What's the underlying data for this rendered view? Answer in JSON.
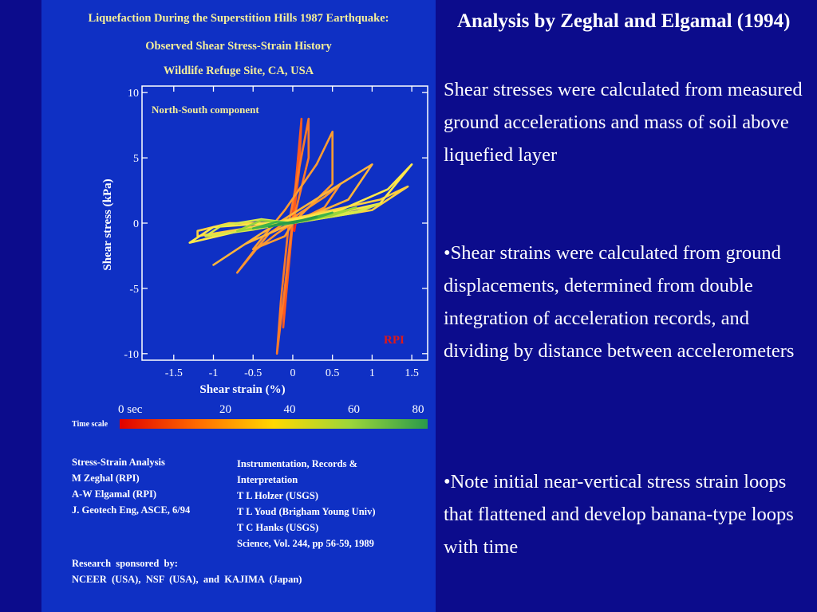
{
  "figure": {
    "title_lines": [
      "Liquefaction During the Superstition Hills 1987 Earthquake:",
      "Observed Shear Stress-Strain History",
      "Wildlife Refuge Site, CA, USA"
    ],
    "component_label": "North-South component",
    "rpi_badge": "RPI",
    "time_scale": {
      "label": "Time scale",
      "ticks": [
        "0 sec",
        "20",
        "40",
        "60",
        "80"
      ],
      "colors": [
        "#e00000",
        "#ff6a00",
        "#ffd800",
        "#9cd63a",
        "#2a9a4a"
      ]
    },
    "credits_left": "Stress-Strain Analysis\nM Zeghal (RPI)\nA-W Elgamal (RPI)\nJ. Geotech Eng, ASCE, 6/94",
    "credits_right": "Instrumentation, Records &\nInterpretation\nT L Holzer (USGS)\nT L Youd (Brigham Young Univ)\nT C Hanks (USGS)\nScience, Vol. 244, pp 56-59, 1989",
    "sponsor": "Research  sponsored  by:\nNCEER  (USA),  NSF  (USA),  and  KAJIMA  (Japan)"
  },
  "chart_data": {
    "type": "line",
    "title": "Observed Shear Stress-Strain History",
    "xlabel": "Shear strain (%)",
    "ylabel": "Shear stress (kPa)",
    "xlim": [
      -1.9,
      1.7
    ],
    "ylim": [
      -10.5,
      10.5
    ],
    "x_ticks": [
      -1.5,
      -1,
      -0.5,
      0,
      0.5,
      1,
      1.5
    ],
    "x_tick_labels": [
      "-1.5",
      "-1",
      "-0.5",
      "0",
      "0.5",
      "1",
      "1.5"
    ],
    "y_ticks": [
      10,
      5,
      0,
      -5,
      -10
    ],
    "y_tick_labels": [
      "10",
      "5",
      "0",
      "-5",
      "-10"
    ],
    "grid": false,
    "series": [
      {
        "color": "#ff2a14",
        "x": [
          0.0,
          0.02,
          0.05,
          0.02,
          -0.02,
          0.0
        ],
        "y": [
          0.0,
          0.8,
          0.5,
          -0.6,
          -0.2,
          0.0
        ]
      },
      {
        "color": "#ff5a1e",
        "x": [
          0.0,
          0.08,
          0.11,
          0.0,
          -0.1,
          -0.12,
          0.0
        ],
        "y": [
          0.0,
          4.0,
          8.0,
          0.5,
          -5.0,
          -8.0,
          0.0
        ]
      },
      {
        "color": "#ff7a28",
        "x": [
          0.0,
          0.2,
          0.2,
          -0.05,
          -0.15,
          -0.2,
          0.0
        ],
        "y": [
          0.0,
          5.0,
          8.0,
          0.0,
          -6.0,
          -10.0,
          0.0
        ]
      },
      {
        "color": "#ff9630",
        "x": [
          0.0,
          0.4,
          0.6,
          0.4,
          -0.3,
          -0.7,
          -0.5,
          -0.2,
          0.0
        ],
        "y": [
          0.0,
          1.2,
          3.0,
          2.0,
          -0.8,
          -3.8,
          -2.2,
          -0.8,
          0.0
        ]
      },
      {
        "color": "#ff9c30",
        "x": [
          0.0,
          0.5,
          0.5,
          0.3,
          -0.1,
          -0.5,
          -0.1,
          0.0
        ],
        "y": [
          0.0,
          3.0,
          7.0,
          4.5,
          1.0,
          -2.0,
          -1.0,
          0.0
        ]
      },
      {
        "color": "#ffb43a",
        "x": [
          0.0,
          0.7,
          1.0,
          0.6,
          -0.4,
          -1.0,
          -0.6,
          0.0
        ],
        "y": [
          0.0,
          1.8,
          4.5,
          3.0,
          -0.8,
          -3.2,
          -1.6,
          0.0
        ]
      },
      {
        "color": "#ffd040",
        "x": [
          0.0,
          1.0,
          1.45,
          1.1,
          0.2,
          -0.6,
          -1.2,
          -1.2,
          -0.8,
          -0.2,
          0.0
        ],
        "y": [
          0.0,
          1.0,
          2.8,
          1.8,
          0.6,
          -0.4,
          -1.0,
          -0.6,
          0.0,
          0.0,
          0.0
        ]
      },
      {
        "color": "#ffe84a",
        "x": [
          0.0,
          1.1,
          1.5,
          1.2,
          0.6,
          -0.6,
          -1.3,
          -1.0,
          -0.3,
          0.0
        ],
        "y": [
          0.0,
          1.5,
          4.5,
          2.6,
          1.0,
          -0.5,
          -1.5,
          -0.3,
          0.0,
          0.0
        ]
      },
      {
        "color": "#d8e84a",
        "x": [
          0.0,
          0.8,
          1.1,
          0.8,
          0.1,
          -0.5,
          -1.1,
          -0.9,
          -0.4,
          0.0
        ],
        "y": [
          0.0,
          0.8,
          1.5,
          0.9,
          0.2,
          -0.5,
          -1.0,
          -0.2,
          0.3,
          0.0
        ]
      },
      {
        "color": "#9cd63a",
        "x": [
          0.0,
          0.5,
          0.8,
          0.5,
          0.0,
          -0.5,
          -0.7,
          -0.4,
          0.0
        ],
        "y": [
          0.0,
          0.6,
          1.2,
          0.7,
          0.1,
          -0.4,
          -0.6,
          0.2,
          0.0
        ]
      },
      {
        "color": "#3fb24a",
        "x": [
          0.0,
          0.3,
          0.5,
          0.3,
          -0.1,
          -0.4,
          -0.5,
          -0.2,
          0.0
        ],
        "y": [
          0.0,
          0.5,
          0.8,
          0.4,
          -0.1,
          -0.3,
          -0.4,
          0.1,
          0.0
        ]
      },
      {
        "color": "#2a9a4a",
        "x": [
          0.0,
          0.2,
          0.3,
          0.1,
          -0.2,
          -0.3,
          -0.1,
          0.0
        ],
        "y": [
          0.0,
          0.3,
          0.5,
          0.2,
          -0.1,
          -0.3,
          0.0,
          0.0
        ]
      }
    ]
  },
  "slide": {
    "heading": "Analysis by Zeghal and Elgamal (1994)",
    "para1": "Shear stresses were calculated from measured ground accelerations and mass of soil above liquefied layer",
    "para2": "•Shear strains were calculated from ground displacements, determined from double integration of acceleration records, and dividing by distance between accelerometers",
    "para3": "•Note initial near-vertical stress strain loops that flattened and develop banana-type loops with time"
  }
}
